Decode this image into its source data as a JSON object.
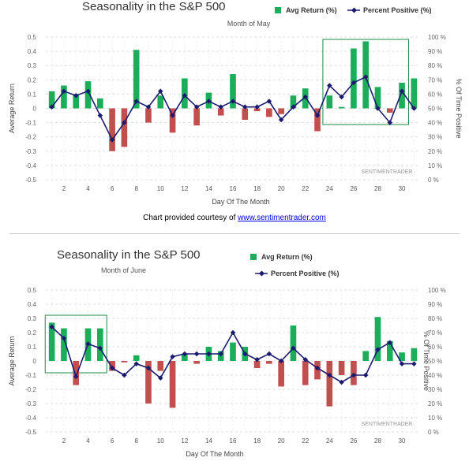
{
  "colors": {
    "bar_positive": "#1aae5a",
    "bar_negative": "#c0504d",
    "line": "#1a1a6e",
    "grid": "#dddddd",
    "highlight": "#1e8a4a",
    "text": "#444444"
  },
  "credit": {
    "prefix": "Chart provided courtesy of ",
    "link": "www.sentimentrader.com"
  },
  "chart_data": [
    {
      "type": "bar",
      "title": "Seasonality in the S&P 500",
      "subtitle": "Month of May",
      "xlabel": "Day Of The Month",
      "ylabel": "Average Return",
      "y2label": "% Of Time Positive",
      "watermark": "SENTIMENTRADER",
      "ylim": [
        -0.5,
        0.5
      ],
      "y2lim": [
        0,
        100
      ],
      "yticks": [
        "0.5",
        "0.4",
        "0.3",
        "0.2",
        "0.1",
        "0",
        "-0.1",
        "-0.2",
        "-0.3",
        "-0.4",
        "-0.5"
      ],
      "y2ticks": [
        "100 %",
        "90 %",
        "80 %",
        "70 %",
        "60 %",
        "50 %",
        "40 %",
        "30 %",
        "20 %",
        "10 %",
        "0 %"
      ],
      "xticks": [
        "2",
        "4",
        "6",
        "8",
        "10",
        "12",
        "14",
        "16",
        "18",
        "20",
        "22",
        "24",
        "26",
        "28",
        "30"
      ],
      "legend": [
        "Avg Return (%)",
        "Percent Positive (%)"
      ],
      "grid": true,
      "x": [
        1,
        2,
        3,
        4,
        5,
        6,
        7,
        8,
        9,
        10,
        11,
        12,
        13,
        14,
        15,
        16,
        17,
        18,
        19,
        20,
        21,
        22,
        23,
        24,
        25,
        26,
        27,
        28,
        29,
        30,
        31
      ],
      "series": [
        {
          "name": "Avg Return (%)",
          "type": "bar",
          "values": [
            0.12,
            0.16,
            0.1,
            0.19,
            0.07,
            -0.3,
            -0.27,
            0.41,
            -0.1,
            0.09,
            -0.17,
            0.21,
            -0.12,
            0.11,
            -0.05,
            0.24,
            -0.08,
            -0.02,
            -0.06,
            -0.04,
            0.09,
            0.14,
            -0.16,
            0.09,
            0.01,
            0.42,
            0.47,
            0.15,
            -0.03,
            0.18,
            0.21
          ]
        },
        {
          "name": "Percent Positive (%)",
          "type": "line",
          "values": [
            51,
            62,
            59,
            62,
            45,
            28,
            40,
            55,
            51,
            62,
            45,
            59,
            51,
            55,
            51,
            55,
            51,
            51,
            55,
            42,
            51,
            58,
            45,
            66,
            58,
            68,
            72,
            50,
            40,
            62,
            50
          ]
        }
      ],
      "highlight_days": [
        24,
        30
      ]
    },
    {
      "type": "bar",
      "title": "Seasonality in the S&P 500",
      "subtitle": "Month of June",
      "xlabel": "Day Of The Month",
      "ylabel": "Average Return",
      "y2label": "% Of Time Positive",
      "watermark": "SENTIMENTRADER",
      "ylim": [
        -0.5,
        0.5
      ],
      "y2lim": [
        0,
        100
      ],
      "yticks": [
        "0.5",
        "0.4",
        "0.3",
        "0.2",
        "0.1",
        "0",
        "-0.1",
        "-0.2",
        "-0.3",
        "-0.4",
        "-0.5"
      ],
      "y2ticks": [
        "100 %",
        "90 %",
        "80 %",
        "70 %",
        "60 %",
        "50 %",
        "40 %",
        "30 %",
        "20 %",
        "10 %",
        "0 %"
      ],
      "xticks": [
        "2",
        "4",
        "6",
        "8",
        "10",
        "12",
        "14",
        "16",
        "18",
        "20",
        "22",
        "24",
        "26",
        "28",
        "30"
      ],
      "legend": [
        "Avg Return (%)",
        "Percent Positive (%)"
      ],
      "grid": true,
      "x": [
        1,
        2,
        3,
        4,
        5,
        6,
        7,
        8,
        9,
        10,
        11,
        12,
        13,
        14,
        15,
        16,
        17,
        18,
        19,
        20,
        21,
        22,
        23,
        24,
        25,
        26,
        27,
        28,
        29,
        30,
        31
      ],
      "series": [
        {
          "name": "Avg Return (%)",
          "type": "bar",
          "values": [
            0.27,
            0.23,
            -0.17,
            0.23,
            0.23,
            -0.07,
            -0.01,
            0.04,
            -0.3,
            -0.07,
            -0.33,
            0.05,
            -0.02,
            0.1,
            0.07,
            0.13,
            0.1,
            -0.05,
            -0.02,
            -0.18,
            0.25,
            -0.17,
            -0.13,
            -0.32,
            -0.1,
            -0.17,
            0.07,
            0.31,
            0.14,
            0.06,
            0.09
          ]
        },
        {
          "name": "Percent Positive (%)",
          "type": "line",
          "values": [
            74,
            66,
            39,
            62,
            59,
            45,
            40,
            48,
            45,
            38,
            53,
            55,
            55,
            55,
            55,
            70,
            55,
            51,
            55,
            50,
            59,
            51,
            45,
            40,
            35,
            40,
            40,
            58,
            63,
            48,
            48
          ]
        }
      ],
      "highlight_days": [
        1,
        5
      ]
    }
  ]
}
